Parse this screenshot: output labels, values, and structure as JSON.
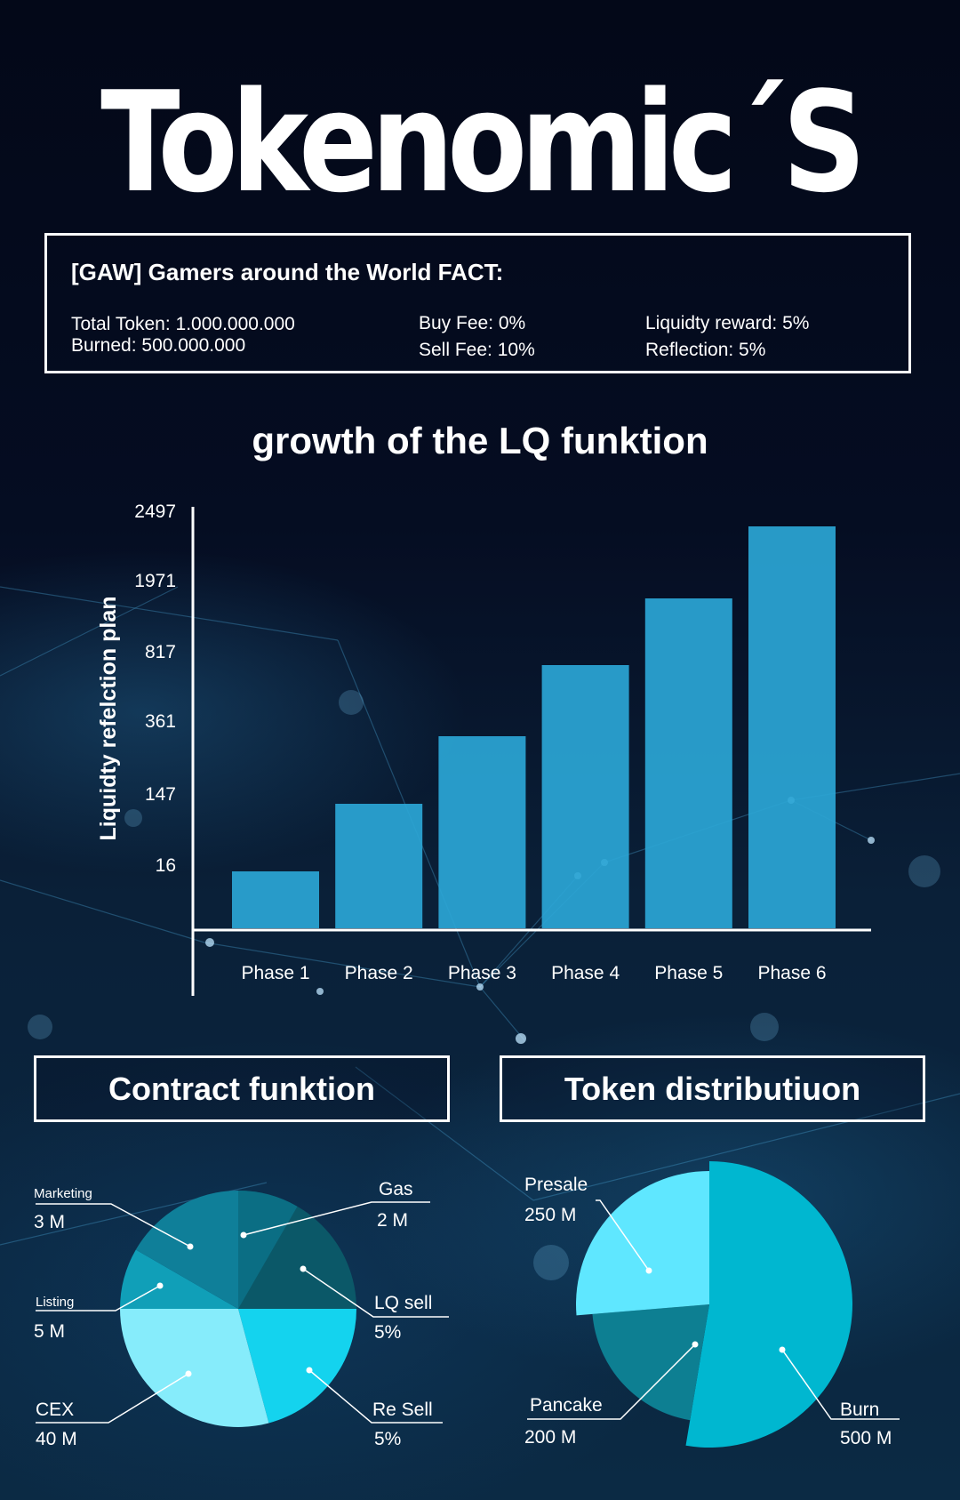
{
  "page": {
    "title": "Tokenomic´S"
  },
  "facts": {
    "heading": "[GAW] Gamers around the World FACT:",
    "total_token": "Total Token: 1.000.000.000",
    "burned": "Burned: 500.000.000",
    "buy_fee": "Buy Fee: 0%",
    "sell_fee": "Sell Fee: 10%",
    "liquidity_reward": "Liquidty reward: 5%",
    "reflection": "Reflection: 5%"
  },
  "growth": {
    "title": "growth of the LQ funktion"
  },
  "sections": {
    "contract": "Contract funktion",
    "distribution": "Token distributiuon"
  },
  "colors": {
    "bar": "#2ba6d6",
    "pie_marketing": "#0f7f99",
    "pie_gas": "#0b6e84",
    "pie_lq_sell": "#0b5868",
    "pie_re_sell": "#14d3ee",
    "pie_cex": "#86ecfb",
    "pie_listing": "#109fb8",
    "pie_presale": "#5fe7ff",
    "pie_pancake": "#0d7f92",
    "pie_burn": "#00b7d0"
  },
  "chart_data": [
    {
      "type": "bar",
      "title": "growth of the LQ funktion",
      "xlabel": "",
      "ylabel": "Liquidty refelction plan",
      "categories": [
        "Phase 1",
        "Phase 2",
        "Phase 3",
        "Phase 4",
        "Phase 5",
        "Phase 6"
      ],
      "values": [
        16,
        147,
        361,
        817,
        1971,
        2497
      ],
      "y_ticks": [
        16,
        147,
        361,
        817,
        1971,
        2497
      ],
      "y_scale": "non-linear ordinal ticks (each bar aligns with one tick level)",
      "grid": false
    },
    {
      "type": "pie",
      "title": "Contract funktion",
      "slices": [
        {
          "name": "Marketing",
          "value_label": "3 M"
        },
        {
          "name": "Gas",
          "value_label": "2 M"
        },
        {
          "name": "LQ sell",
          "value_label": "5%"
        },
        {
          "name": "Re Sell",
          "value_label": "5%"
        },
        {
          "name": "CEX",
          "value_label": "40 M"
        },
        {
          "name": "Listing",
          "value_label": "5 M"
        }
      ]
    },
    {
      "type": "pie",
      "title": "Token distributiuon",
      "slices": [
        {
          "name": "Presale",
          "value_label": "250 M",
          "value": 250
        },
        {
          "name": "Pancake",
          "value_label": "200 M",
          "value": 200
        },
        {
          "name": "Burn",
          "value_label": "500 M",
          "value": 500
        }
      ]
    }
  ]
}
